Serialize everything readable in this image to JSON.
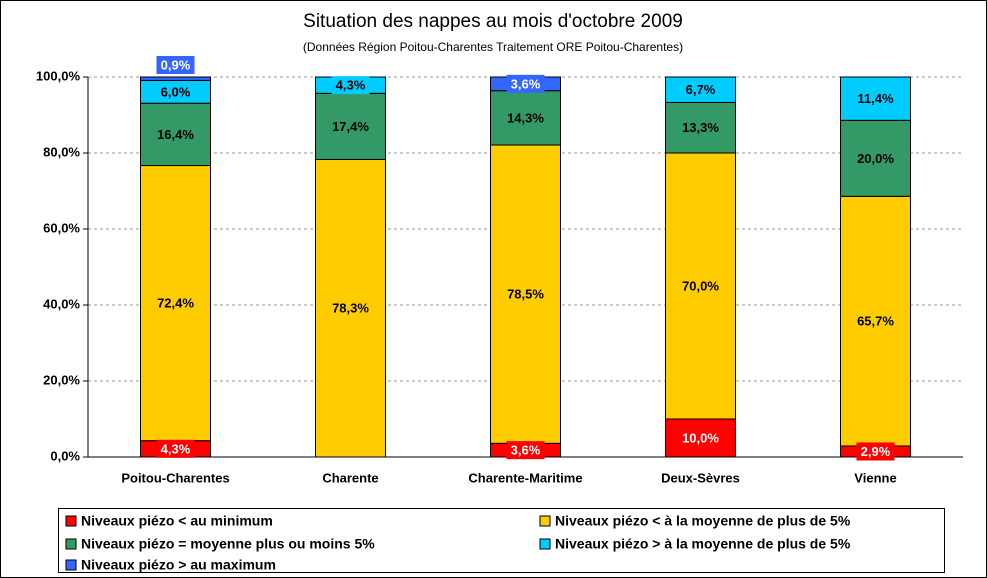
{
  "chart_data": {
    "type": "stacked_bar",
    "title": "Situation des nappes au mois d'octobre 2009",
    "subtitle": "(Données Région Poitou-Charentes Traitement ORE Poitou-Charentes)",
    "categories": [
      "Poitou-Charentes",
      "Charente",
      "Charente-Maritime",
      "Deux-Sèvres",
      "Vienne"
    ],
    "series": [
      {
        "name": "Niveaux piézo < au minimum",
        "color": "#ff0000",
        "values": [
          4.3,
          0,
          3.6,
          10.0,
          2.9
        ],
        "value_labels": [
          "4,3%",
          null,
          "3,6%",
          "10,0%",
          "2,9%"
        ]
      },
      {
        "name": "Niveaux piézo < à la moyenne de plus de 5%",
        "color": "#ffcc00",
        "values": [
          72.4,
          78.3,
          78.5,
          70.0,
          65.7
        ],
        "value_labels": [
          "72,4%",
          "78,3%",
          "78,5%",
          "70,0%",
          "65,7%"
        ]
      },
      {
        "name": "Niveaux piézo = moyenne plus ou moins 5%",
        "color": "#339966",
        "values": [
          16.4,
          17.4,
          14.3,
          13.3,
          20.0
        ],
        "value_labels": [
          "16,4%",
          "17,4%",
          "14,3%",
          "13,3%",
          "20,0%"
        ]
      },
      {
        "name": "Niveaux piézo > à la moyenne de plus de 5%",
        "color": "#00ccff",
        "values": [
          6.0,
          4.3,
          0,
          6.7,
          11.4
        ],
        "value_labels": [
          "6,0%",
          "4,3%",
          null,
          "6,7%",
          "11,4%"
        ]
      },
      {
        "name": "Niveaux piézo > au maximum",
        "color": "#3366ff",
        "values": [
          0.9,
          0,
          3.6,
          0,
          0
        ],
        "value_labels": [
          "0,9%",
          null,
          "3,6%",
          null,
          null
        ]
      }
    ],
    "ylim": [
      0,
      100
    ],
    "yticks": [
      {
        "value": 0,
        "label": "0,0%"
      },
      {
        "value": 20,
        "label": "20,0%"
      },
      {
        "value": 40,
        "label": "40,0%"
      },
      {
        "value": 60,
        "label": "60,0%"
      },
      {
        "value": 80,
        "label": "80,0%"
      },
      {
        "value": 100,
        "label": "100,0%"
      }
    ],
    "grid": true
  }
}
